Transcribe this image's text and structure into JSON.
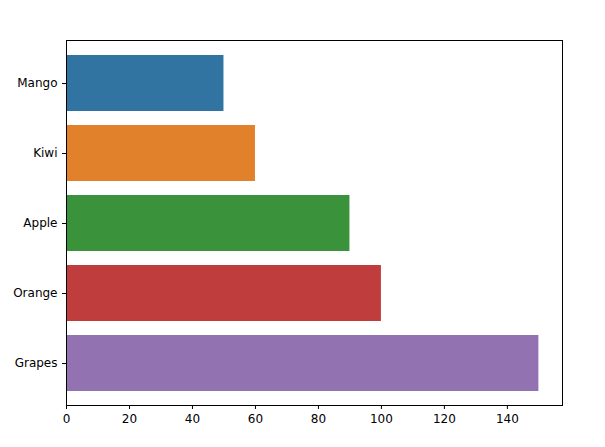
{
  "chart_data": {
    "type": "bar",
    "orientation": "horizontal",
    "categories": [
      "Mango",
      "Kiwi",
      "Apple",
      "Orange",
      "Grapes"
    ],
    "values": [
      50,
      60,
      90,
      100,
      150
    ],
    "colors": [
      "#3274a1",
      "#e1812c",
      "#3a923a",
      "#c03d3e",
      "#9372b2"
    ],
    "xlim": [
      0,
      157.5
    ],
    "xticks": [
      0,
      20,
      40,
      60,
      80,
      100,
      120,
      140
    ],
    "grid": false
  }
}
